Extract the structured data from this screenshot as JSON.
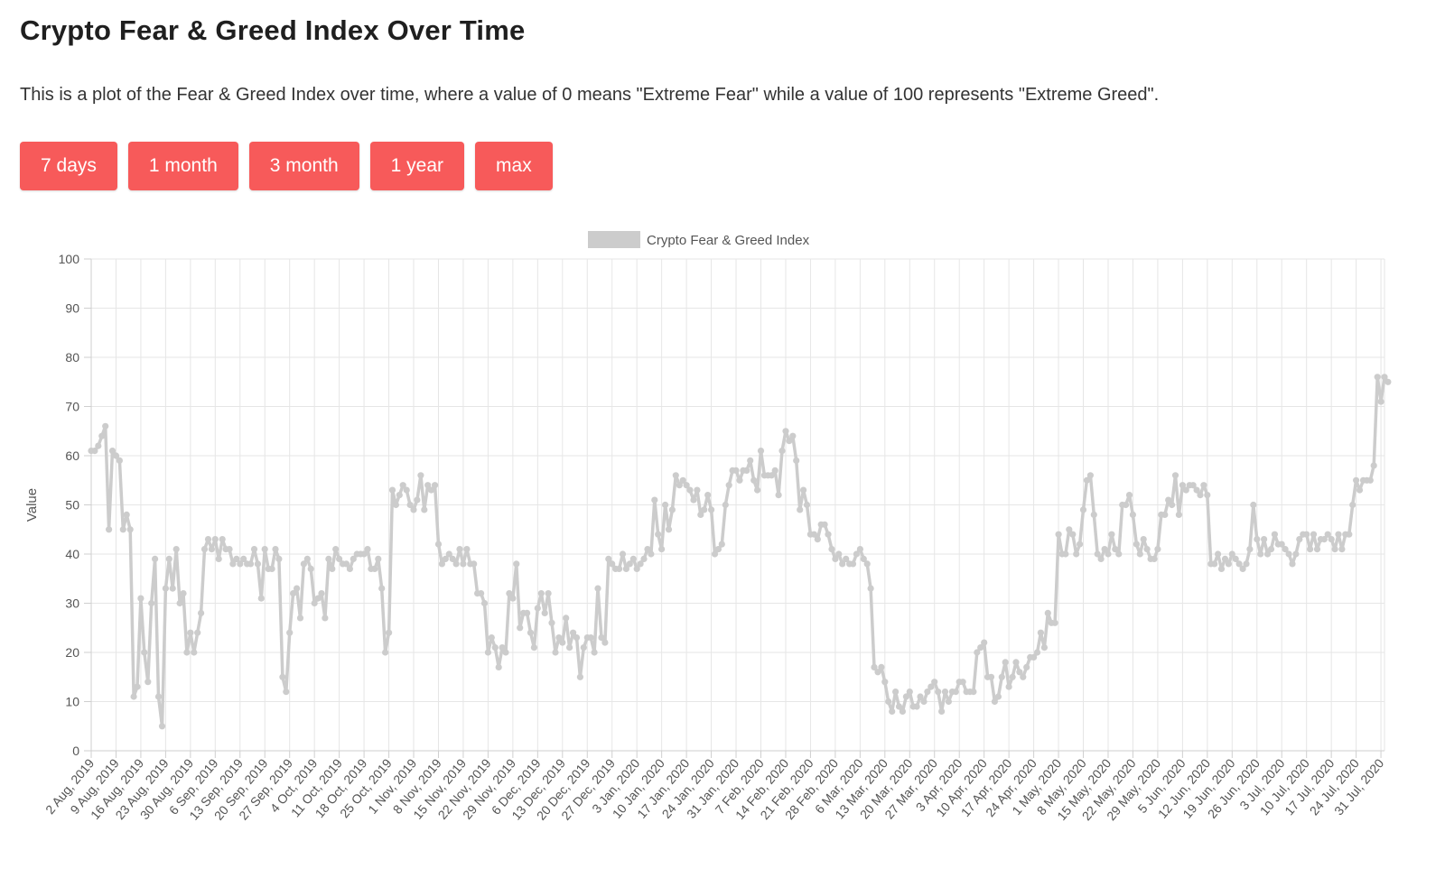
{
  "page": {
    "title": "Crypto Fear & Greed Index Over Time",
    "description": "This is a plot of the Fear & Greed Index over time, where a value of 0 means \"Extreme Fear\" while a value of 100 represents \"Extreme Greed\"."
  },
  "buttons": [
    {
      "label": "7 days"
    },
    {
      "label": "1 month"
    },
    {
      "label": "3 month"
    },
    {
      "label": "1 year"
    },
    {
      "label": "max"
    }
  ],
  "colors": {
    "button": "#f75a5a",
    "series": "#cccccc",
    "grid": "#e6e6e6"
  },
  "chart_data": {
    "type": "line",
    "title": "",
    "xlabel": "",
    "ylabel": "Value",
    "ylim": [
      0,
      100
    ],
    "yticks": [
      0,
      10,
      20,
      30,
      40,
      50,
      60,
      70,
      80,
      90,
      100
    ],
    "xlim": [
      "2019-08-02",
      "2020-08-01"
    ],
    "grid": true,
    "legend_position": "top-center",
    "x_tick_labels": [
      "2 Aug, 2019",
      "9 Aug, 2019",
      "16 Aug, 2019",
      "23 Aug, 2019",
      "30 Aug, 2019",
      "6 Sep, 2019",
      "13 Sep, 2019",
      "20 Sep, 2019",
      "27 Sep, 2019",
      "4 Oct, 2019",
      "11 Oct, 2019",
      "18 Oct, 2019",
      "25 Oct, 2019",
      "1 Nov, 2019",
      "8 Nov, 2019",
      "15 Nov, 2019",
      "22 Nov, 2019",
      "29 Nov, 2019",
      "6 Dec, 2019",
      "13 Dec, 2019",
      "20 Dec, 2019",
      "27 Dec, 2019",
      "3 Jan, 2020",
      "10 Jan, 2020",
      "17 Jan, 2020",
      "24 Jan, 2020",
      "31 Jan, 2020",
      "7 Feb, 2020",
      "14 Feb, 2020",
      "21 Feb, 2020",
      "28 Feb, 2020",
      "6 Mar, 2020",
      "13 Mar, 2020",
      "20 Mar, 2020",
      "27 Mar, 2020",
      "3 Apr, 2020",
      "10 Apr, 2020",
      "17 Apr, 2020",
      "24 Apr, 2020",
      "1 May, 2020",
      "8 May, 2020",
      "15 May, 2020",
      "22 May, 2020",
      "29 May, 2020",
      "5 Jun, 2020",
      "12 Jun, 2020",
      "19 Jun, 2020",
      "26 Jun, 2020",
      "3 Jul, 2020",
      "10 Jul, 2020",
      "17 Jul, 2020",
      "24 Jul, 2020",
      "31 Jul, 2020"
    ],
    "series": [
      {
        "name": "Crypto Fear & Greed Index",
        "start_date": "2019-08-02",
        "interval_days": 1,
        "values": [
          61,
          61,
          62,
          64,
          66,
          45,
          61,
          60,
          59,
          45,
          48,
          45,
          11,
          13,
          31,
          20,
          14,
          30,
          39,
          11,
          5,
          33,
          39,
          33,
          41,
          30,
          32,
          20,
          24,
          20,
          24,
          28,
          41,
          43,
          41,
          43,
          39,
          43,
          41,
          41,
          38,
          39,
          38,
          39,
          38,
          38,
          41,
          38,
          31,
          41,
          37,
          37,
          41,
          39,
          15,
          12,
          24,
          32,
          33,
          27,
          38,
          39,
          37,
          30,
          31,
          32,
          27,
          39,
          37,
          41,
          39,
          38,
          38,
          37,
          39,
          40,
          40,
          40,
          41,
          37,
          37,
          39,
          33,
          20,
          24,
          53,
          50,
          52,
          54,
          53,
          50,
          49,
          51,
          56,
          49,
          54,
          53,
          54,
          42,
          38,
          39,
          40,
          39,
          38,
          41,
          38,
          41,
          38,
          38,
          32,
          32,
          30,
          20,
          23,
          21,
          17,
          21,
          20,
          32,
          31,
          38,
          25,
          28,
          28,
          24,
          21,
          29,
          32,
          28,
          32,
          26,
          20,
          23,
          22,
          27,
          21,
          24,
          23,
          15,
          21,
          23,
          23,
          20,
          33,
          23,
          22,
          39,
          38,
          37,
          37,
          40,
          37,
          38,
          39,
          37,
          38,
          39,
          41,
          40,
          51,
          44,
          41,
          50,
          45,
          49,
          56,
          54,
          55,
          54,
          53,
          51,
          53,
          48,
          49,
          52,
          49,
          40,
          41,
          42,
          50,
          54,
          57,
          57,
          55,
          57,
          57,
          59,
          55,
          53,
          61,
          56,
          56,
          56,
          57,
          52,
          61,
          65,
          63,
          64,
          59,
          49,
          53,
          50,
          44,
          44,
          43,
          46,
          46,
          44,
          41,
          39,
          40,
          38,
          39,
          38,
          38,
          40,
          41,
          39,
          38,
          33,
          17,
          16,
          17,
          14,
          10,
          8,
          12,
          9,
          8,
          11,
          12,
          9,
          9,
          11,
          10,
          12,
          13,
          14,
          12,
          8,
          12,
          10,
          12,
          12,
          14,
          14,
          12,
          12,
          12,
          20,
          21,
          22,
          15,
          15,
          10,
          11,
          15,
          18,
          13,
          15,
          18,
          16,
          15,
          17,
          19,
          19,
          20,
          24,
          21,
          28,
          26,
          26,
          44,
          40,
          40,
          45,
          44,
          40,
          42,
          49,
          55,
          56,
          48,
          40,
          39,
          41,
          40,
          44,
          41,
          40,
          50,
          50,
          52,
          48,
          42,
          40,
          43,
          41,
          39,
          39,
          41,
          48,
          48,
          51,
          50,
          56,
          48,
          54,
          53,
          54,
          54,
          53,
          52,
          54,
          52,
          38,
          38,
          40,
          37,
          39,
          38,
          40,
          39,
          38,
          37,
          38,
          41,
          50,
          43,
          40,
          43,
          40,
          41,
          44,
          42,
          42,
          41,
          40,
          38,
          40,
          43,
          44,
          44,
          41,
          44,
          41,
          43,
          43,
          44,
          43,
          41,
          44,
          41,
          44,
          44,
          50,
          55,
          53,
          55,
          55,
          55,
          58,
          76,
          71,
          76,
          75
        ]
      }
    ]
  }
}
